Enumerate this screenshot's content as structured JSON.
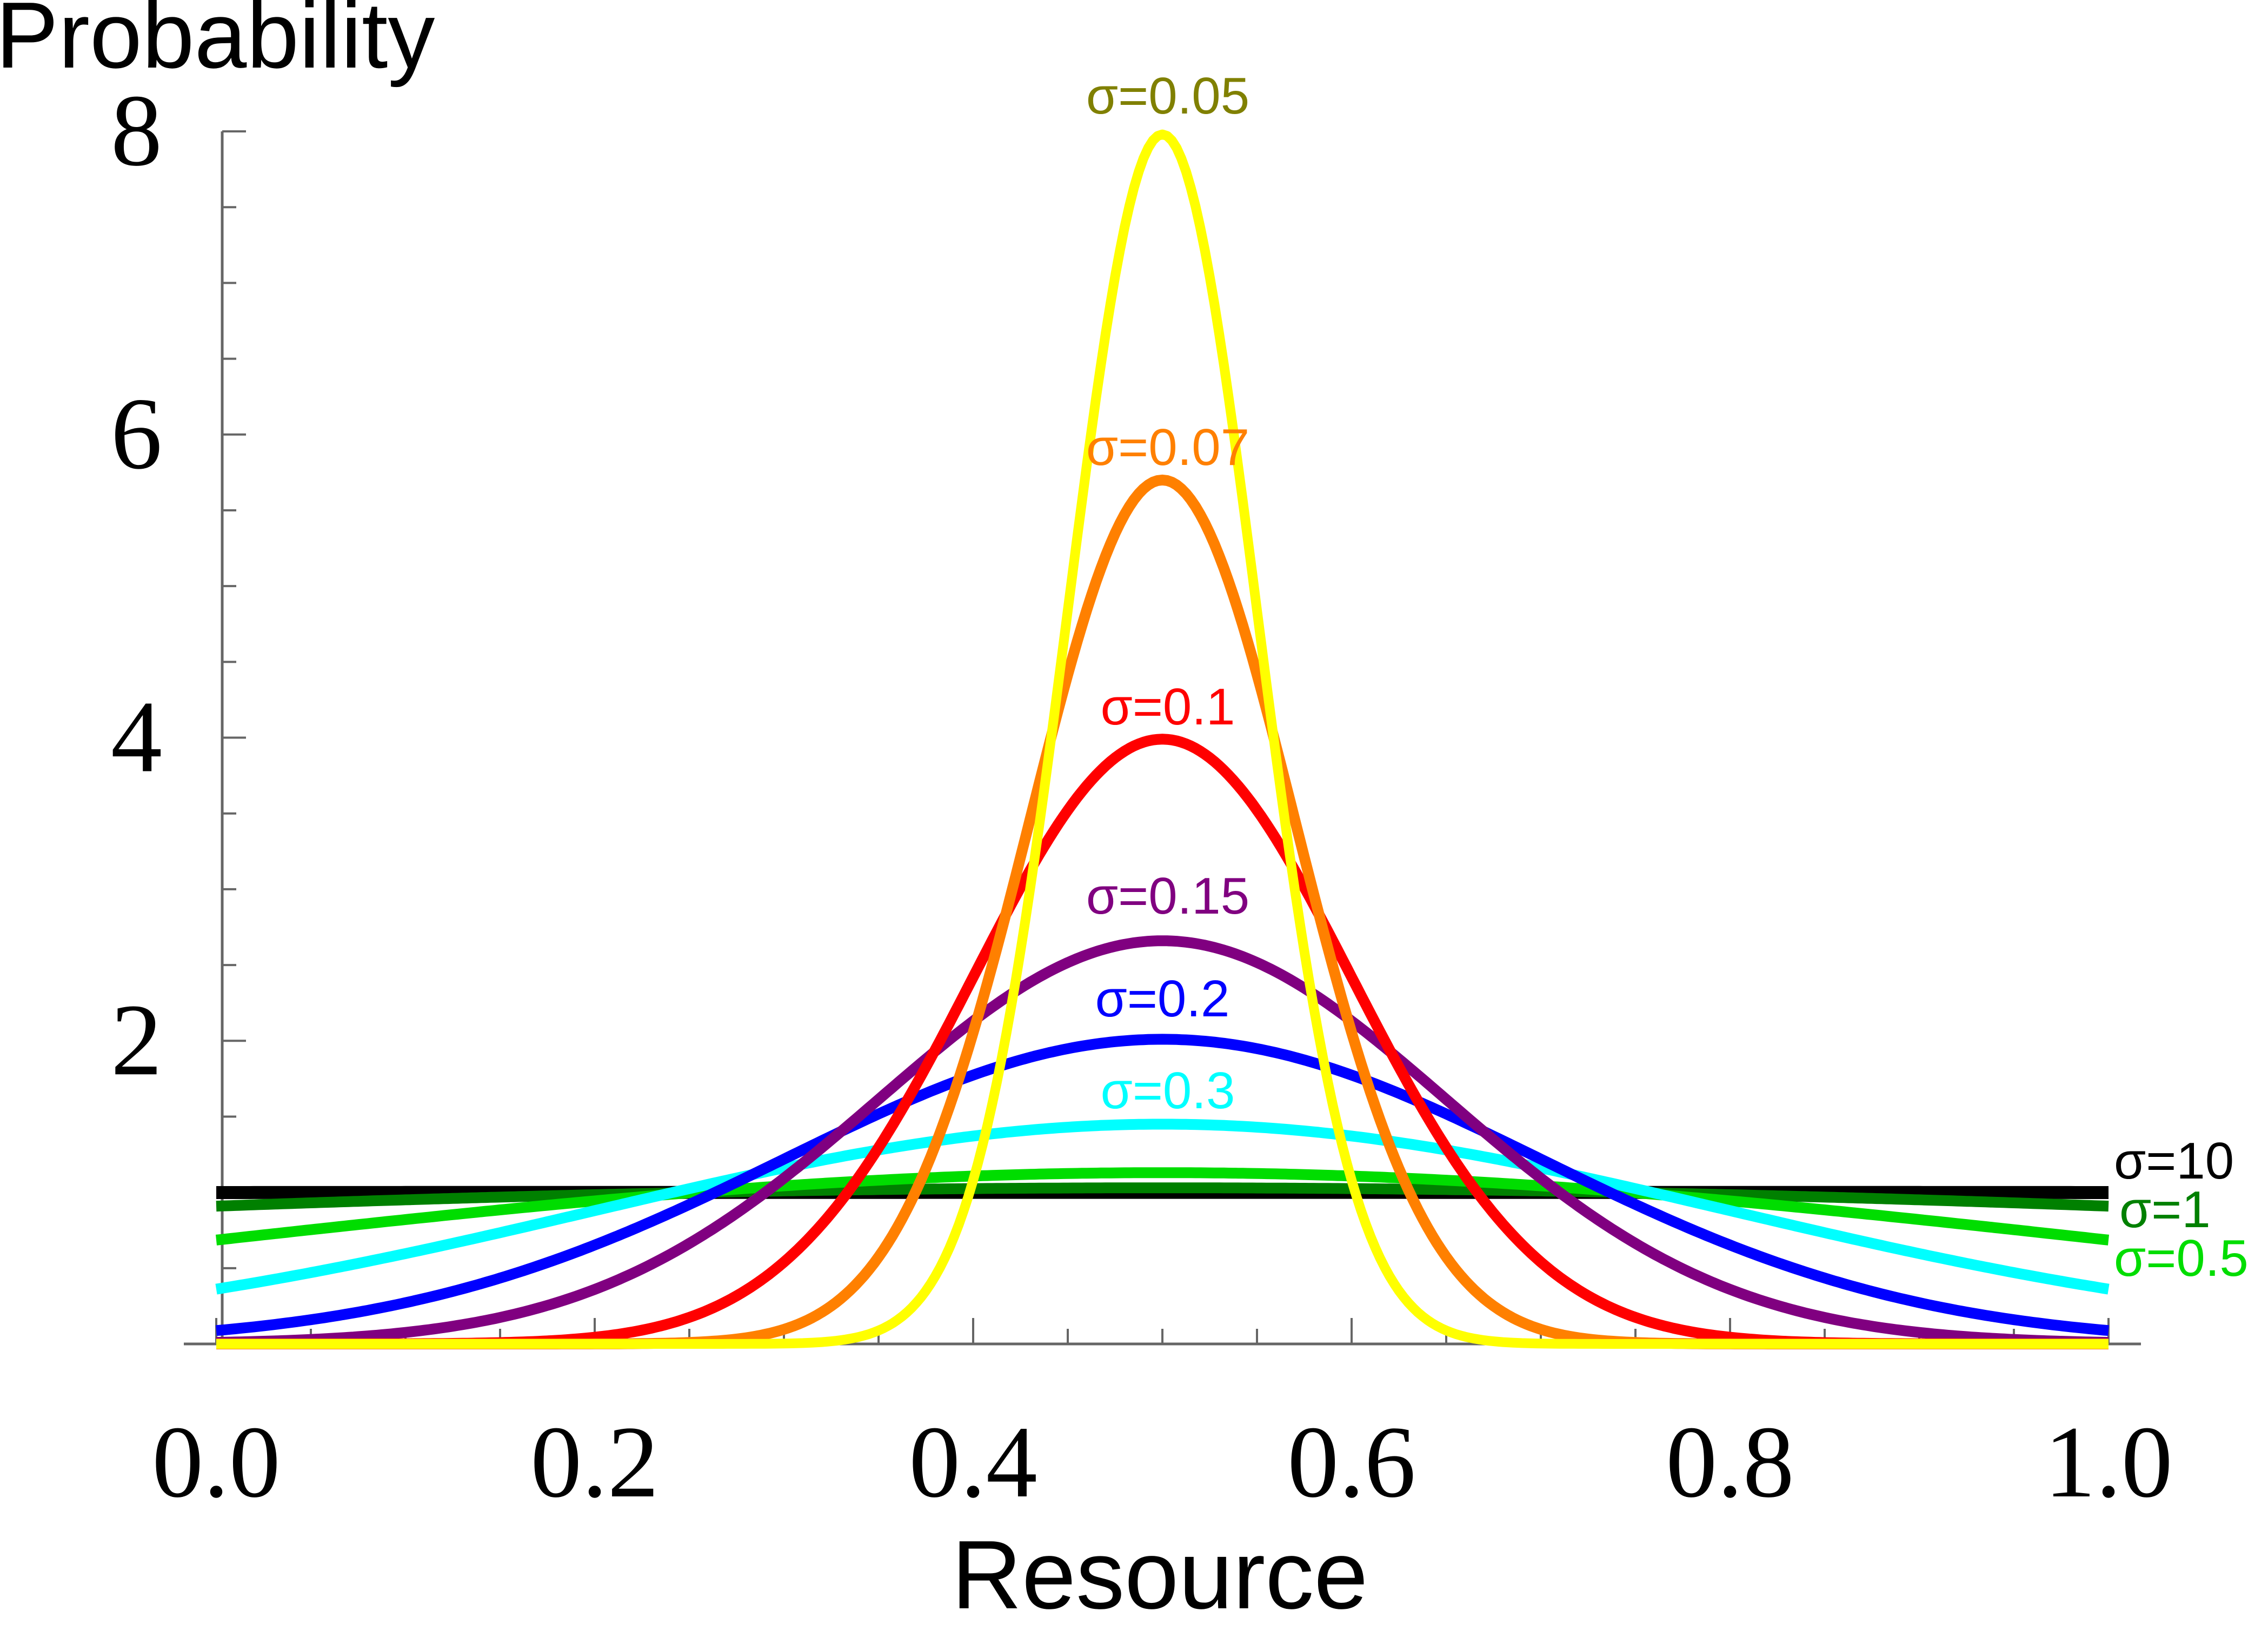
{
  "chart_data": {
    "type": "line",
    "ylabel": "Probability",
    "xlabel": "Resource",
    "xlim": [
      0,
      1
    ],
    "ylim": [
      0,
      8
    ],
    "x_ticks": [
      "0.0",
      "0.2",
      "0.4",
      "0.6",
      "0.8",
      "1.0"
    ],
    "y_ticks": [
      "2",
      "4",
      "6",
      "8"
    ],
    "grid": false,
    "series": [
      {
        "name": "σ=0.05",
        "sigma": 0.05,
        "color": "#ffff00",
        "label_color": "#808000",
        "peak": 7.98
      },
      {
        "name": "σ=0.07",
        "sigma": 0.07,
        "color": "#ff8000",
        "label_color": "#ff8000",
        "peak": 5.7
      },
      {
        "name": "σ=0.1",
        "sigma": 0.1,
        "color": "#ff0000",
        "label_color": "#ff0000",
        "peak": 3.99
      },
      {
        "name": "σ=0.15",
        "sigma": 0.15,
        "color": "#800080",
        "label_color": "#800080",
        "peak": 2.66
      },
      {
        "name": "σ=0.2",
        "sigma": 0.2,
        "color": "#0000ff",
        "label_color": "#0000ff",
        "peak": 2.01
      },
      {
        "name": "σ=0.3",
        "sigma": 0.3,
        "color": "#00ffff",
        "label_color": "#00ffff",
        "peak": 1.45
      },
      {
        "name": "σ=0.5",
        "sigma": 0.5,
        "color": "#00dd00",
        "label_color": "#00dd00",
        "peak": 1.13
      },
      {
        "name": "σ=1",
        "sigma": 1,
        "color": "#008000",
        "label_color": "#008000",
        "peak": 1.03
      },
      {
        "name": "σ=10",
        "sigma": 10,
        "color": "#000000",
        "label_color": "#000000",
        "peak": 1.0
      }
    ]
  }
}
